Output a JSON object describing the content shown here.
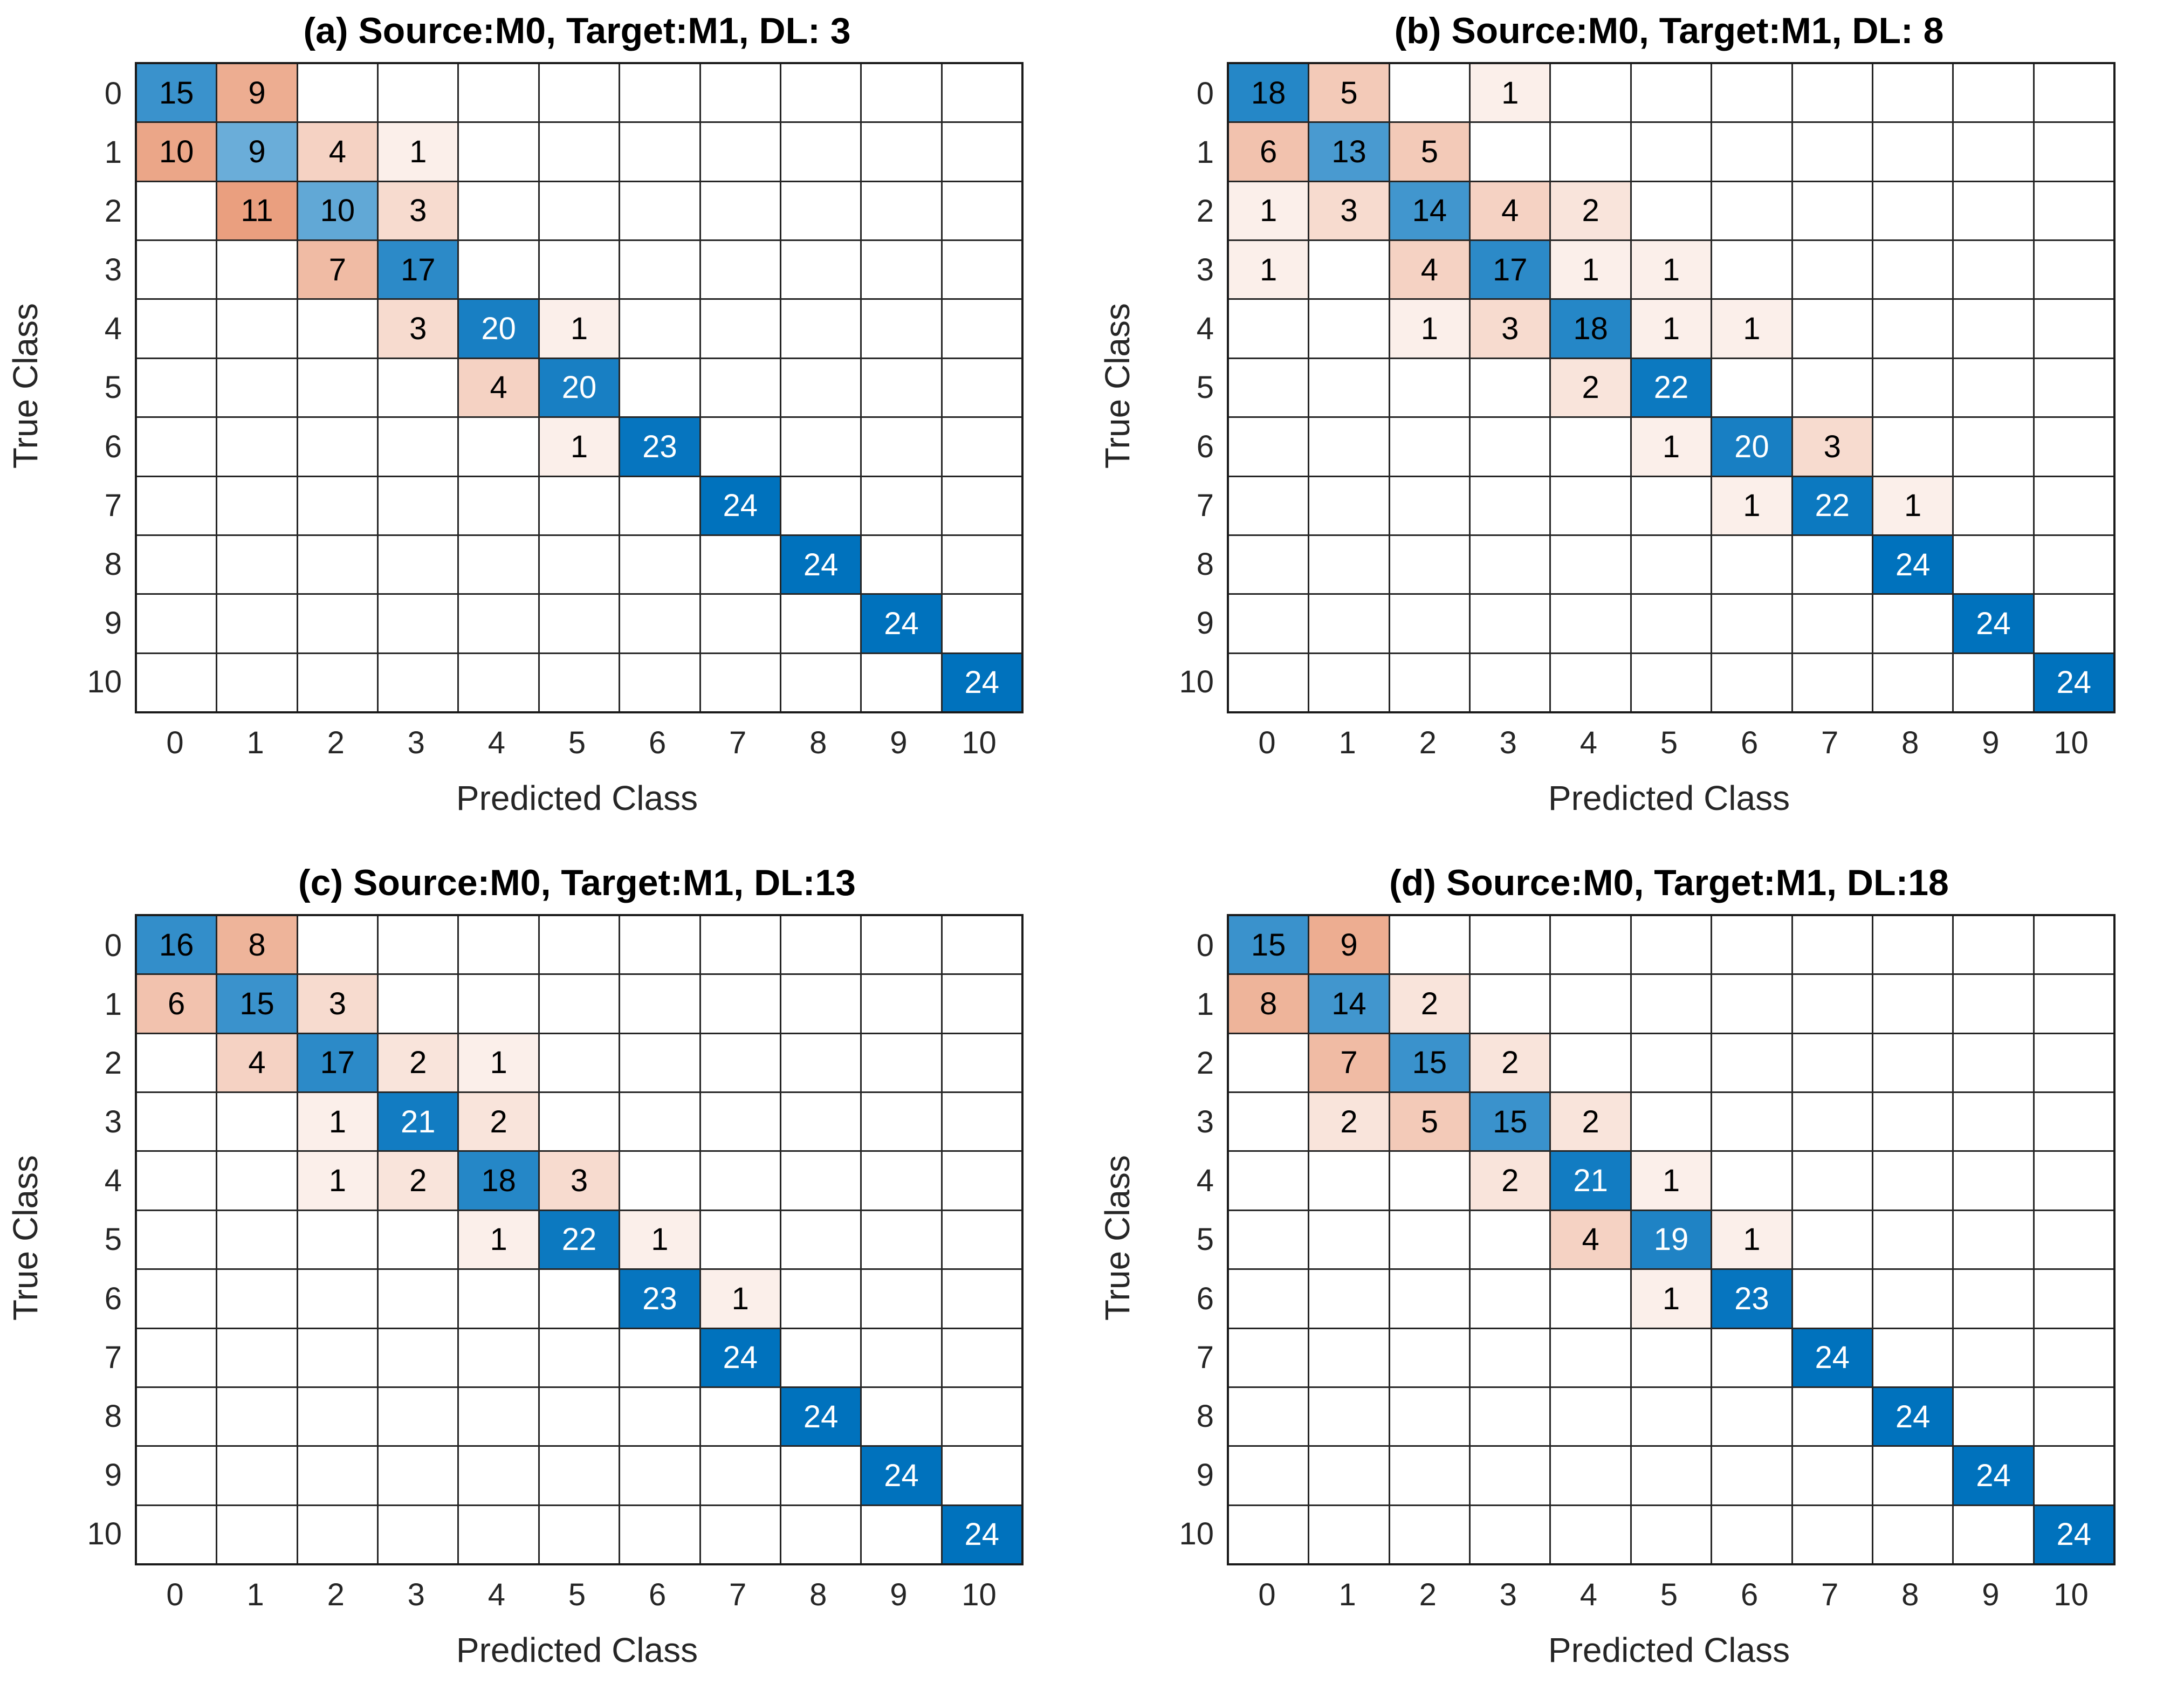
{
  "figure": {
    "ylabel": "True Class",
    "xlabel": "Predicted Class",
    "color_scale_max": 24,
    "colors": {
      "diagonal": "#0072BD",
      "off_diagonal": "#D95319",
      "grid": "#262626",
      "axis_text": "#262626",
      "title_text": "#000000",
      "cell_text_dark": "#000000",
      "cell_text_light": "#ffffff",
      "empty_cell": "#ffffff"
    }
  },
  "chart_data": [
    {
      "type": "heatmap",
      "title": "(a) Source:M0, Target:M1, DL: 3",
      "xlabel": "Predicted Class",
      "ylabel": "True Class",
      "x_categories": [
        "0",
        "1",
        "2",
        "3",
        "4",
        "5",
        "6",
        "7",
        "8",
        "9",
        "10"
      ],
      "y_categories": [
        "0",
        "1",
        "2",
        "3",
        "4",
        "5",
        "6",
        "7",
        "8",
        "9",
        "10"
      ],
      "matrix": [
        [
          15,
          9,
          0,
          0,
          0,
          0,
          0,
          0,
          0,
          0,
          0
        ],
        [
          10,
          9,
          4,
          1,
          0,
          0,
          0,
          0,
          0,
          0,
          0
        ],
        [
          0,
          11,
          10,
          3,
          0,
          0,
          0,
          0,
          0,
          0,
          0
        ],
        [
          0,
          0,
          7,
          17,
          0,
          0,
          0,
          0,
          0,
          0,
          0
        ],
        [
          0,
          0,
          0,
          3,
          20,
          1,
          0,
          0,
          0,
          0,
          0
        ],
        [
          0,
          0,
          0,
          0,
          4,
          20,
          0,
          0,
          0,
          0,
          0
        ],
        [
          0,
          0,
          0,
          0,
          0,
          1,
          23,
          0,
          0,
          0,
          0
        ],
        [
          0,
          0,
          0,
          0,
          0,
          0,
          0,
          24,
          0,
          0,
          0
        ],
        [
          0,
          0,
          0,
          0,
          0,
          0,
          0,
          0,
          24,
          0,
          0
        ],
        [
          0,
          0,
          0,
          0,
          0,
          0,
          0,
          0,
          0,
          24,
          0
        ],
        [
          0,
          0,
          0,
          0,
          0,
          0,
          0,
          0,
          0,
          0,
          24
        ]
      ]
    },
    {
      "type": "heatmap",
      "title": "(b) Source:M0, Target:M1, DL: 8",
      "xlabel": "Predicted Class",
      "ylabel": "True Class",
      "x_categories": [
        "0",
        "1",
        "2",
        "3",
        "4",
        "5",
        "6",
        "7",
        "8",
        "9",
        "10"
      ],
      "y_categories": [
        "0",
        "1",
        "2",
        "3",
        "4",
        "5",
        "6",
        "7",
        "8",
        "9",
        "10"
      ],
      "matrix": [
        [
          18,
          5,
          0,
          1,
          0,
          0,
          0,
          0,
          0,
          0,
          0
        ],
        [
          6,
          13,
          5,
          0,
          0,
          0,
          0,
          0,
          0,
          0,
          0
        ],
        [
          1,
          3,
          14,
          4,
          2,
          0,
          0,
          0,
          0,
          0,
          0
        ],
        [
          1,
          0,
          4,
          17,
          1,
          1,
          0,
          0,
          0,
          0,
          0
        ],
        [
          0,
          0,
          1,
          3,
          18,
          1,
          1,
          0,
          0,
          0,
          0
        ],
        [
          0,
          0,
          0,
          0,
          2,
          22,
          0,
          0,
          0,
          0,
          0
        ],
        [
          0,
          0,
          0,
          0,
          0,
          1,
          20,
          3,
          0,
          0,
          0
        ],
        [
          0,
          0,
          0,
          0,
          0,
          0,
          1,
          22,
          1,
          0,
          0
        ],
        [
          0,
          0,
          0,
          0,
          0,
          0,
          0,
          0,
          24,
          0,
          0
        ],
        [
          0,
          0,
          0,
          0,
          0,
          0,
          0,
          0,
          0,
          24,
          0
        ],
        [
          0,
          0,
          0,
          0,
          0,
          0,
          0,
          0,
          0,
          0,
          24
        ]
      ]
    },
    {
      "type": "heatmap",
      "title": "(c) Source:M0, Target:M1, DL:13",
      "xlabel": "Predicted Class",
      "ylabel": "True Class",
      "x_categories": [
        "0",
        "1",
        "2",
        "3",
        "4",
        "5",
        "6",
        "7",
        "8",
        "9",
        "10"
      ],
      "y_categories": [
        "0",
        "1",
        "2",
        "3",
        "4",
        "5",
        "6",
        "7",
        "8",
        "9",
        "10"
      ],
      "matrix": [
        [
          16,
          8,
          0,
          0,
          0,
          0,
          0,
          0,
          0,
          0,
          0
        ],
        [
          6,
          15,
          3,
          0,
          0,
          0,
          0,
          0,
          0,
          0,
          0
        ],
        [
          0,
          4,
          17,
          2,
          1,
          0,
          0,
          0,
          0,
          0,
          0
        ],
        [
          0,
          0,
          1,
          21,
          2,
          0,
          0,
          0,
          0,
          0,
          0
        ],
        [
          0,
          0,
          1,
          2,
          18,
          3,
          0,
          0,
          0,
          0,
          0
        ],
        [
          0,
          0,
          0,
          0,
          1,
          22,
          1,
          0,
          0,
          0,
          0
        ],
        [
          0,
          0,
          0,
          0,
          0,
          0,
          23,
          1,
          0,
          0,
          0
        ],
        [
          0,
          0,
          0,
          0,
          0,
          0,
          0,
          24,
          0,
          0,
          0
        ],
        [
          0,
          0,
          0,
          0,
          0,
          0,
          0,
          0,
          24,
          0,
          0
        ],
        [
          0,
          0,
          0,
          0,
          0,
          0,
          0,
          0,
          0,
          24,
          0
        ],
        [
          0,
          0,
          0,
          0,
          0,
          0,
          0,
          0,
          0,
          0,
          24
        ]
      ]
    },
    {
      "type": "heatmap",
      "title": "(d) Source:M0, Target:M1, DL:18",
      "xlabel": "Predicted Class",
      "ylabel": "True Class",
      "x_categories": [
        "0",
        "1",
        "2",
        "3",
        "4",
        "5",
        "6",
        "7",
        "8",
        "9",
        "10"
      ],
      "y_categories": [
        "0",
        "1",
        "2",
        "3",
        "4",
        "5",
        "6",
        "7",
        "8",
        "9",
        "10"
      ],
      "matrix": [
        [
          15,
          9,
          0,
          0,
          0,
          0,
          0,
          0,
          0,
          0,
          0
        ],
        [
          8,
          14,
          2,
          0,
          0,
          0,
          0,
          0,
          0,
          0,
          0
        ],
        [
          0,
          7,
          15,
          2,
          0,
          0,
          0,
          0,
          0,
          0,
          0
        ],
        [
          0,
          2,
          5,
          15,
          2,
          0,
          0,
          0,
          0,
          0,
          0
        ],
        [
          0,
          0,
          0,
          2,
          21,
          1,
          0,
          0,
          0,
          0,
          0
        ],
        [
          0,
          0,
          0,
          0,
          4,
          19,
          1,
          0,
          0,
          0,
          0
        ],
        [
          0,
          0,
          0,
          0,
          0,
          1,
          23,
          0,
          0,
          0,
          0
        ],
        [
          0,
          0,
          0,
          0,
          0,
          0,
          0,
          24,
          0,
          0,
          0
        ],
        [
          0,
          0,
          0,
          0,
          0,
          0,
          0,
          0,
          24,
          0,
          0
        ],
        [
          0,
          0,
          0,
          0,
          0,
          0,
          0,
          0,
          0,
          24,
          0
        ],
        [
          0,
          0,
          0,
          0,
          0,
          0,
          0,
          0,
          0,
          0,
          24
        ]
      ]
    }
  ]
}
